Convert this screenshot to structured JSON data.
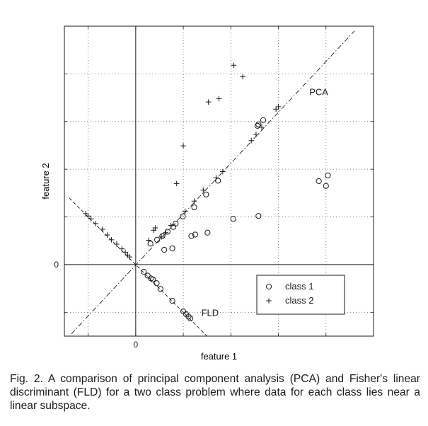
{
  "chart_data": {
    "type": "scatter",
    "xlabel": "feature 1",
    "ylabel": "feature 2",
    "xlim": [
      -1.5,
      5
    ],
    "ylim": [
      -1.5,
      5
    ],
    "x_tick_labels": [
      {
        "value": 0,
        "label": "0"
      }
    ],
    "y_tick_labels": [
      {
        "value": 0,
        "label": "0"
      }
    ],
    "grid": true,
    "legend_position": "bottom-right",
    "series": [
      {
        "name": "class 1",
        "marker": "circle",
        "points": [
          [
            0.31,
            0.44
          ],
          [
            0.45,
            0.52
          ],
          [
            0.56,
            0.6
          ],
          [
            0.67,
            0.69
          ],
          [
            0.79,
            0.79
          ],
          [
            0.84,
            0.86
          ],
          [
            0.99,
            1.01
          ],
          [
            1.23,
            1.2
          ],
          [
            1.48,
            1.47
          ],
          [
            1.73,
            1.76
          ],
          [
            2.56,
            2.91
          ],
          [
            2.58,
            2.94
          ],
          [
            2.68,
            3.03
          ],
          [
            0.6,
            0.31
          ],
          [
            0.77,
            0.34
          ],
          [
            1.17,
            0.6
          ],
          [
            1.25,
            0.63
          ],
          [
            1.51,
            0.67
          ],
          [
            2.05,
            0.96
          ],
          [
            2.58,
            1.02
          ],
          [
            3.85,
            1.75
          ],
          [
            4.0,
            1.65
          ],
          [
            4.04,
            1.87
          ],
          [
            0.17,
            -0.15
          ],
          [
            0.25,
            -0.23
          ],
          [
            0.32,
            -0.29
          ],
          [
            0.36,
            -0.31
          ],
          [
            0.44,
            -0.39
          ],
          [
            0.52,
            -0.51
          ],
          [
            0.77,
            -0.76
          ],
          [
            1.0,
            -0.98
          ],
          [
            1.06,
            -1.04
          ],
          [
            1.11,
            -1.09
          ],
          [
            1.15,
            -1.13
          ]
        ]
      },
      {
        "name": "class 2",
        "marker": "plus",
        "points": [
          [
            -1.05,
            1.07
          ],
          [
            -1.0,
            1.02
          ],
          [
            -0.94,
            0.96
          ],
          [
            -0.84,
            0.86
          ],
          [
            -0.7,
            0.74
          ],
          [
            -0.6,
            0.62
          ],
          [
            -0.51,
            0.52
          ],
          [
            -0.4,
            0.43
          ],
          [
            -0.29,
            0.33
          ],
          [
            -0.22,
            0.26
          ],
          [
            -0.17,
            0.2
          ],
          [
            -0.13,
            0.16
          ],
          [
            0.27,
            0.51
          ],
          [
            0.38,
            0.72
          ],
          [
            0.41,
            0.77
          ],
          [
            0.54,
            0.58
          ],
          [
            0.63,
            0.67
          ],
          [
            0.74,
            0.82
          ],
          [
            1.04,
            1.12
          ],
          [
            1.23,
            1.33
          ],
          [
            1.42,
            1.56
          ],
          [
            1.69,
            1.82
          ],
          [
            1.83,
            1.95
          ],
          [
            0.86,
            1.7
          ],
          [
            1.0,
            2.49
          ],
          [
            1.53,
            3.41
          ],
          [
            1.75,
            3.48
          ],
          [
            2.06,
            4.18
          ],
          [
            2.25,
            3.94
          ],
          [
            2.43,
            2.6
          ],
          [
            2.53,
            2.73
          ],
          [
            2.65,
            2.88
          ],
          [
            2.95,
            3.26
          ],
          [
            3.0,
            3.31
          ]
        ]
      }
    ],
    "lines": [
      {
        "label": "PCA",
        "style": "dash-dot",
        "from": [
          -1.35,
          -1.45
        ],
        "to": [
          4.6,
          4.9
        ]
      },
      {
        "label": "FLD",
        "style": "dashed",
        "from": [
          -1.4,
          1.4
        ],
        "to": [
          1.5,
          -1.5
        ]
      }
    ],
    "annotations": [
      {
        "text": "PCA",
        "x": 3.65,
        "y": 3.55
      },
      {
        "text": "FLD",
        "x": 1.38,
        "y": -1.08
      }
    ]
  },
  "caption": "Fig. 2. A comparison of principal component analysis (PCA) and Fisher's linear discriminant (FLD) for a two class problem where data for each class lies near a linear subspace."
}
